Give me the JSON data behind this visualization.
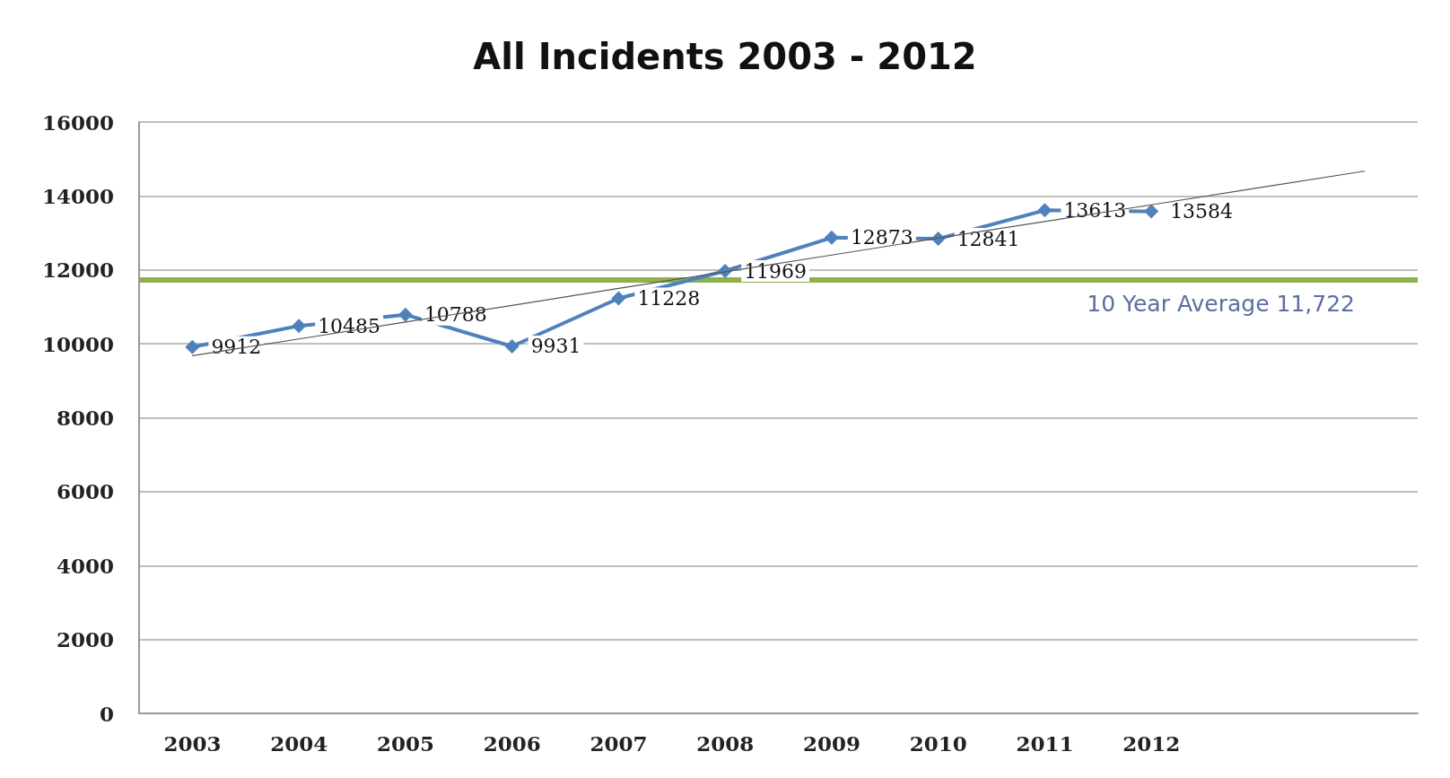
{
  "chart_data": {
    "type": "line",
    "title": "All Incidents 2003 - 2012",
    "categories": [
      "2003",
      "2004",
      "2005",
      "2006",
      "2007",
      "2008",
      "2009",
      "2010",
      "2011",
      "2012",
      null,
      null
    ],
    "series": [
      {
        "color": "#4f81bd",
        "values": [
          9912,
          10485,
          10788,
          9931,
          11228,
          11969,
          12873,
          12841,
          13613,
          13584,
          null,
          null
        ],
        "value_labels": [
          "9912",
          "10485",
          "10788",
          "9931",
          "11228",
          "11969",
          "12873",
          "12841",
          "13613",
          "13584",
          null,
          null
        ]
      },
      {
        "type": "line",
        "color": "#555555",
        "marker": "none",
        "values": [
          9680,
          10130,
          10590,
          11040,
          11500,
          11950,
          12400,
          12860,
          13310,
          13760,
          14220,
          14670
        ]
      }
    ],
    "ylim": [
      0,
      16000
    ],
    "yticks": [
      0,
      2000,
      4000,
      6000,
      8000,
      10000,
      12000,
      14000,
      16000
    ],
    "ref_lines": [
      {
        "axis": "y",
        "value": 11722,
        "label": "10 Year Average 11,722",
        "color": "#8db050"
      }
    ],
    "grid": "y",
    "marker": "diamond"
  }
}
